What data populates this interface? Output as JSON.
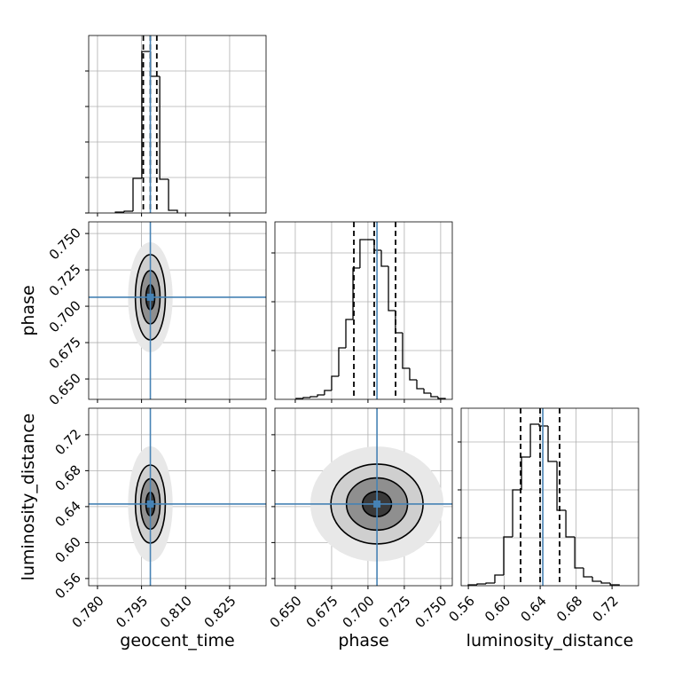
{
  "chart_data": {
    "type": "corner",
    "grid": true,
    "line_color": "#000000",
    "truth_color": "#4682b4",
    "contour_colors": [
      "#e8e8e8",
      "#cfcfcf",
      "#8f8f8f",
      "#3a3a3a"
    ],
    "hist_ylim": [
      0,
      200
    ],
    "parameters": [
      {
        "label": "geocent_time",
        "lim": [
          0.777,
          0.8374
        ],
        "ticks": [
          {
            "value": 0.78,
            "label": "0.780"
          },
          0.795,
          {
            "value": 0.81,
            "label": "0.810"
          },
          0.825
        ],
        "truth": 0.798,
        "quantiles": [
          0.7956,
          0.798,
          0.8002
        ],
        "bins": [
          0.7861,
          0.7891,
          0.7921,
          0.7951,
          0.7981,
          0.8012,
          0.8042,
          0.8072
        ],
        "counts": [
          1,
          2,
          39,
          182,
          154,
          38,
          3
        ],
        "hist_ticks": [
          0,
          40,
          80,
          120,
          160
        ],
        "contours": []
      },
      {
        "label": "phase",
        "lim": [
          0.636,
          0.758
        ],
        "ticks": [
          {
            "value": 0.65,
            "label": "0.650"
          },
          0.675,
          {
            "value": 0.7,
            "label": "0.700"
          },
          0.725,
          {
            "value": 0.75,
            "label": "0.750"
          }
        ],
        "truth": 0.7062,
        "quantiles": [
          0.6903,
          0.7043,
          0.719
        ],
        "bins": [
          0.6506,
          0.6555,
          0.6604,
          0.6653,
          0.6701,
          0.675,
          0.6799,
          0.6848,
          0.6897,
          0.6945,
          0.6994,
          0.7043,
          0.7092,
          0.7141,
          0.7189,
          0.7238,
          0.7287,
          0.7336,
          0.7385,
          0.7433,
          0.7482,
          0.7531
        ],
        "counts": [
          1,
          2,
          3,
          5,
          10,
          26,
          58,
          90,
          148,
          180,
          180,
          168,
          150,
          100,
          75,
          35,
          22,
          12,
          7,
          3,
          1
        ],
        "hist_ticks": [
          55,
          110,
          165
        ],
        "contours": [
          [
            [
              0.0076,
              0.0378
            ],
            [
              0.0051,
              0.0293
            ],
            [
              0.0033,
              0.0183
            ],
            [
              0.0015,
              0.0085
            ]
          ]
        ]
      },
      {
        "label": "luminosity_distance",
        "lim": [
          0.552,
          0.7495
        ],
        "ticks": [
          0.56,
          {
            "value": 0.6,
            "label": "0.60"
          },
          0.64,
          0.68,
          0.72
        ],
        "truth": 0.6429,
        "quantiles": [
          0.6182,
          0.6399,
          0.6616
        ],
        "bins": [
          0.5599,
          0.5698,
          0.5797,
          0.5895,
          0.5994,
          0.6093,
          0.6192,
          0.6291,
          0.6389,
          0.6488,
          0.6587,
          0.6686,
          0.6785,
          0.6883,
          0.6982,
          0.7081,
          0.718,
          0.7279
        ],
        "counts": [
          1,
          2,
          3,
          12,
          55,
          108,
          145,
          182,
          180,
          140,
          85,
          55,
          20,
          10,
          5,
          3,
          1
        ],
        "hist_ticks": [
          54,
          108,
          162
        ],
        "contours": [
          [
            [
              0.0076,
              0.0642
            ],
            [
              0.0051,
              0.0434
            ],
            [
              0.0033,
              0.028
            ],
            [
              0.0015,
              0.013
            ]
          ],
          [
            [
              0.0458,
              0.064
            ],
            [
              0.0317,
              0.0444
            ],
            [
              0.021,
              0.029
            ],
            [
              0.01,
              0.014
            ]
          ]
        ]
      }
    ]
  }
}
